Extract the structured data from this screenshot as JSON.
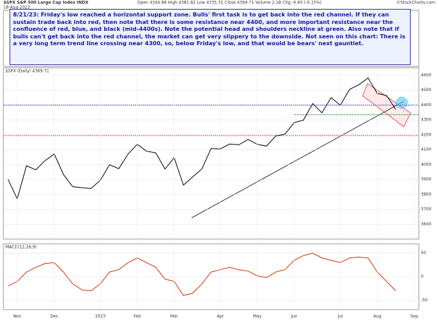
{
  "header": {
    "symbol": "$SPX S&P 500 Large Cap Index INDX",
    "date": "18-Aug-2023",
    "quote": "Open 4344.88  High 4381.82  Low 4335.31  Close 4369.71  Volume 2.1B  Chg -6.60 (-0.15%)",
    "source": "©StockCharts.com"
  },
  "annotation": "8/21/23:  Friday's low reached a horizontal support zone.  Bulls' first task is to get back into the red channel.  If they can sustain trade back into red, then note that there is some resistance near 4400, and more important resistance near the confluence of red, blue, and black (mid-4400s).  Note the potential head and shoulders neckline at green.  Also note that if bulls can't get back into the red channel, the market can get very slippery to the downside.  Not seen on this chart:  There is a very long term trend line crossing near 4300, so, below Friday's low, and that would be bears' next gauntlet.",
  "chart_data": [
    {
      "type": "line",
      "title": "$SPX (Daily) 4369.71",
      "color": "#000000",
      "categories": [
        null,
        "Nov",
        null,
        null,
        null,
        "Dec",
        null,
        null,
        null,
        null,
        "2023",
        null,
        null,
        null,
        "Feb",
        null,
        null,
        null,
        "Mar",
        null,
        null,
        null,
        null,
        "Apr",
        null,
        null,
        null,
        "May",
        null,
        null,
        null,
        "Jun",
        null,
        null,
        null,
        null,
        "Jul",
        null,
        null,
        null,
        "Aug",
        null,
        null,
        null,
        "Sep"
      ],
      "values": [
        3901,
        3770,
        3992,
        3965,
        4026,
        4072,
        3934,
        3852,
        3845,
        3840,
        3895,
        3999,
        3973,
        4071,
        4136,
        4090,
        4079,
        3970,
        4046,
        3862,
        3917,
        3971,
        4109,
        4105,
        4138,
        4133,
        4169,
        4136,
        4124,
        4192,
        4205,
        4282,
        4299,
        4410,
        4348,
        4450,
        4399,
        4505,
        4536,
        4582,
        4478,
        4464,
        4370,
        null,
        null
      ],
      "ylim": [
        3500,
        4650
      ],
      "yticks": [
        3600,
        3700,
        3800,
        3900,
        4000,
        4100,
        4200,
        4300,
        4400,
        4500,
        4600
      ],
      "grid": true,
      "reference_lines": [
        {
          "value": 4400,
          "color": "#3333cc"
        },
        {
          "value": 4195,
          "color": "#cc3333"
        },
        {
          "value": 4335,
          "color": "#339933"
        }
      ]
    },
    {
      "type": "line",
      "title": "MACD(12,26,9)",
      "color": "#cc3300",
      "values": [
        -20,
        -10,
        10,
        20,
        28,
        30,
        10,
        -15,
        -28,
        -30,
        -15,
        10,
        15,
        30,
        40,
        30,
        20,
        -5,
        -10,
        -40,
        -35,
        -15,
        10,
        15,
        20,
        15,
        12,
        2,
        -2,
        10,
        15,
        35,
        45,
        50,
        40,
        35,
        30,
        40,
        42,
        40,
        10,
        -10,
        -30,
        null,
        null
      ],
      "ylim": [
        -70,
        70
      ],
      "yticks": [
        -50,
        0,
        50
      ],
      "grid": true
    }
  ]
}
